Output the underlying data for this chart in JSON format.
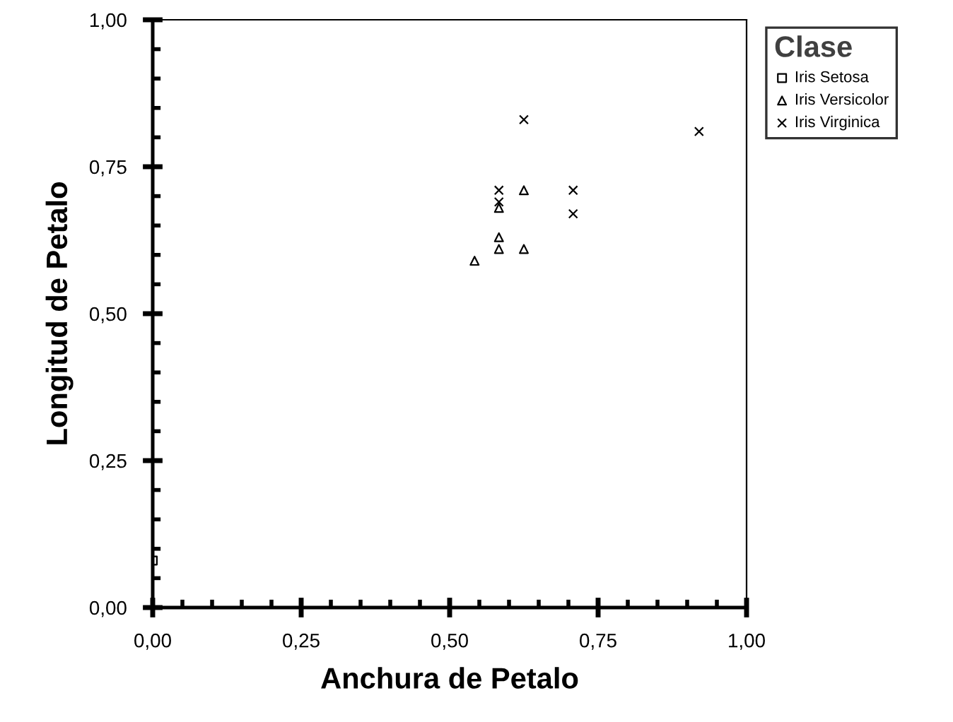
{
  "chart_data": {
    "type": "scatter",
    "xlabel": "Anchura de Petalo",
    "ylabel": "Longitud de Petalo",
    "legend_title": "Clase",
    "legend": "top right",
    "grid": false,
    "xlim": [
      0,
      1
    ],
    "ylim": [
      0,
      1
    ],
    "xticks": [
      {
        "value": 0,
        "label": "0,00"
      },
      {
        "value": 0.25,
        "label": "0,25"
      },
      {
        "value": 0.5,
        "label": "0,50"
      },
      {
        "value": 0.75,
        "label": "0,75"
      },
      {
        "value": 1,
        "label": "1,00"
      }
    ],
    "yticks": [
      {
        "value": 0,
        "label": "0,00"
      },
      {
        "value": 0.25,
        "label": "0,25"
      },
      {
        "value": 0.5,
        "label": "0,50"
      },
      {
        "value": 0.75,
        "label": "0,75"
      },
      {
        "value": 1,
        "label": "1,00"
      }
    ],
    "series": [
      {
        "name": "Iris Setosa",
        "color": "#000000",
        "marker": "square",
        "x": [
          0.0
        ],
        "values": [
          0.08
        ]
      },
      {
        "name": "Iris Versicolor",
        "color": "#000000",
        "marker": "triangle",
        "x": [
          0.625,
          0.583,
          0.583,
          0.583,
          0.625,
          0.542
        ],
        "values": [
          0.71,
          0.68,
          0.63,
          0.61,
          0.61,
          0.59
        ]
      },
      {
        "name": "Iris Virginica",
        "color": "#000000",
        "marker": "cross",
        "x": [
          0.625,
          0.92,
          0.583,
          0.583,
          0.708,
          0.708
        ],
        "values": [
          0.83,
          0.81,
          0.71,
          0.69,
          0.71,
          0.67
        ]
      }
    ]
  }
}
